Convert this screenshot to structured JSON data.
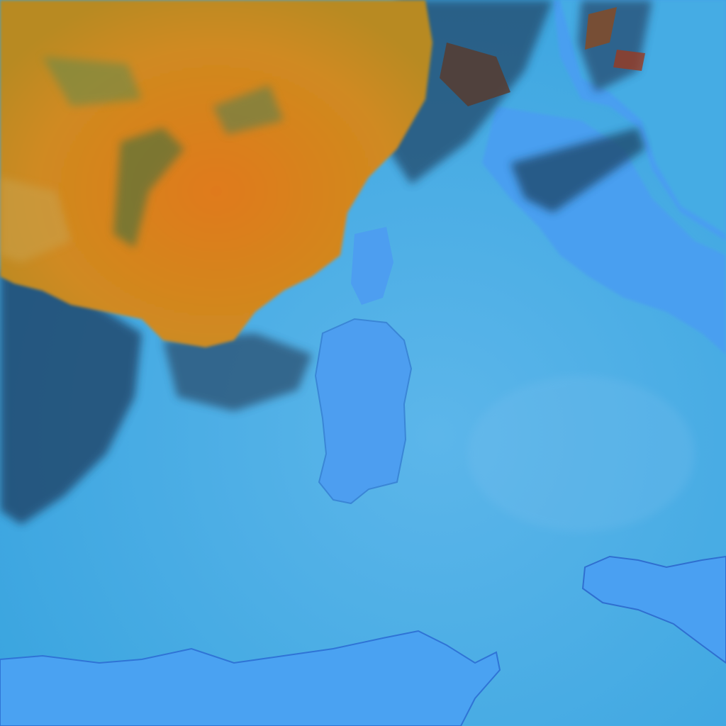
{
  "image": {
    "kind": "false-color satellite imagery",
    "colors": {
      "sea": "#3aa8e2",
      "sea_light": "#5cb8ec",
      "land": "#4a9ff0",
      "cloud_orange": "#d97a1e",
      "cloud_yellow": "#c9951e",
      "cloud_edge_dark": "#1a3a5a",
      "cloud_green": "#2f6a3a"
    }
  }
}
